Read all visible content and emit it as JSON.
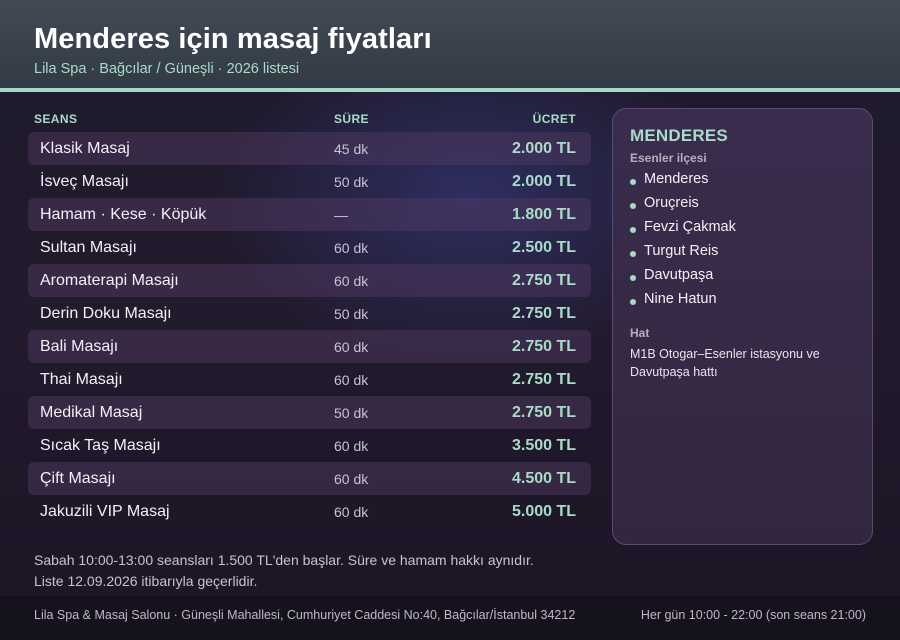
{
  "header": {
    "title": "Menderes için masaj fiyatları",
    "subtitle": "Lila Spa · Bağcılar / Güneşli · 2026 listesi"
  },
  "table": {
    "columns": {
      "seans": "SEANS",
      "sure": "SÜRE",
      "ucret": "ÜCRET"
    },
    "rows": [
      {
        "name": "Klasik Masaj",
        "duration": "45 dk",
        "price": "2.000 TL"
      },
      {
        "name": "İsveç Masajı",
        "duration": "50 dk",
        "price": "2.000 TL"
      },
      {
        "name": "Hamam · Kese · Köpük",
        "duration": "—",
        "price": "1.800 TL"
      },
      {
        "name": "Sultan Masajı",
        "duration": "60 dk",
        "price": "2.500 TL"
      },
      {
        "name": "Aromaterapi Masajı",
        "duration": "60 dk",
        "price": "2.750 TL"
      },
      {
        "name": "Derin Doku Masajı",
        "duration": "50 dk",
        "price": "2.750 TL"
      },
      {
        "name": "Bali Masajı",
        "duration": "60 dk",
        "price": "2.750 TL"
      },
      {
        "name": "Thai Masajı",
        "duration": "60 dk",
        "price": "2.750 TL"
      },
      {
        "name": "Medikal Masaj",
        "duration": "50 dk",
        "price": "2.750 TL"
      },
      {
        "name": "Sıcak Taş Masajı",
        "duration": "60 dk",
        "price": "3.500 TL"
      },
      {
        "name": "Çift Masajı",
        "duration": "60 dk",
        "price": "4.500 TL"
      },
      {
        "name": "Jakuzili VIP Masaj",
        "duration": "60 dk",
        "price": "5.000 TL"
      }
    ]
  },
  "sidebar": {
    "title": "MENDERES",
    "subtitle": "Esenler ilçesi",
    "items": [
      "Menderes",
      "Oruçreis",
      "Fevzi Çakmak",
      "Turgut Reis",
      "Davutpaşa",
      "Nine Hatun"
    ],
    "hat_label": "Hat",
    "hat_text": "M1B Otogar–Esenler istasyonu ve Davutpaşa hattı"
  },
  "notes": {
    "line1": "Sabah 10:00-13:00 seansları 1.500 TL'den başlar. Süre ve hamam hakkı aynıdır.",
    "line2": "Liste 12.09.2026 itibarıyla geçerlidir."
  },
  "footer": {
    "address": "Lila Spa & Masaj Salonu · Güneşli Mahallesi, Cumhuriyet Caddesi No:40, Bağcılar/İstanbul 34212",
    "hours": "Her gün 10:00 - 22:00 (son seans 21:00)"
  },
  "colors": {
    "accent": "#a9dcc8",
    "header_bg": "#3a424d",
    "row_shade": "#3b2c48",
    "sidebar_bg": "#372a47"
  }
}
